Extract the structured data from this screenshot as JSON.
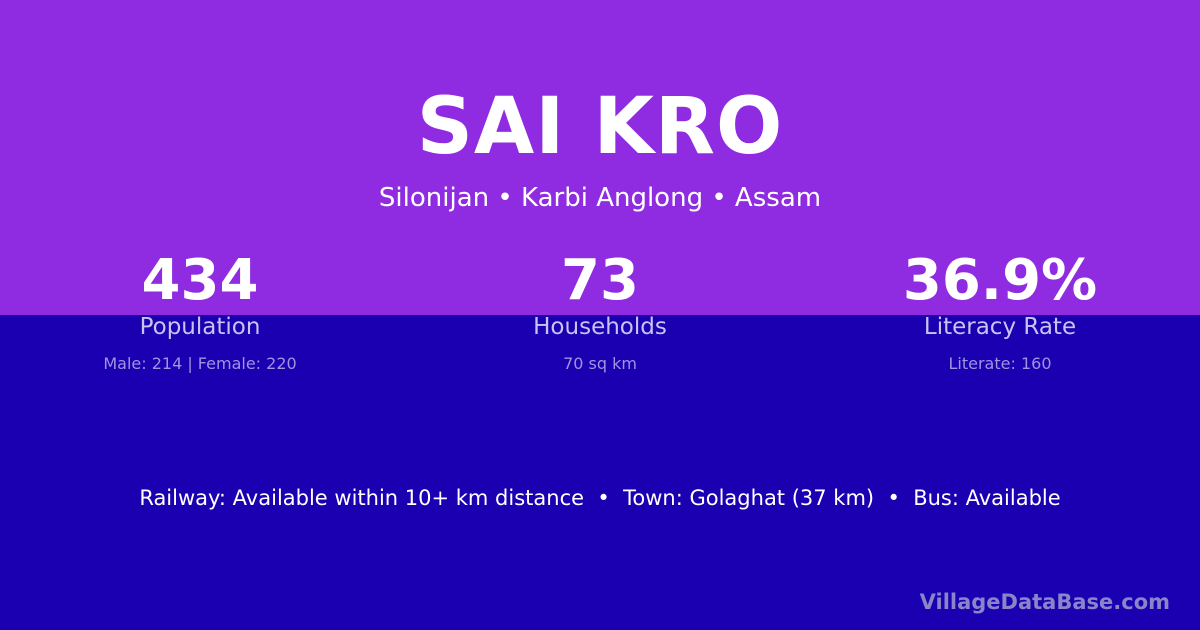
{
  "colors": {
    "top_background": "#8f2be0",
    "bottom_background": "#1a00b0"
  },
  "title": "SAI KRO",
  "subtitle": "Silonijan • Karbi Anglong • Assam",
  "stats": [
    {
      "value": "434",
      "label": "Population",
      "detail": "Male: 214 | Female: 220"
    },
    {
      "value": "73",
      "label": "Households",
      "detail": "70 sq km"
    },
    {
      "value": "36.9%",
      "label": "Literacy Rate",
      "detail": "Literate: 160"
    }
  ],
  "info_line": "Railway: Available within 10+ km distance  •  Town: Golaghat (37 km)  •  Bus: Available",
  "brand": "VillageDataBase.com"
}
